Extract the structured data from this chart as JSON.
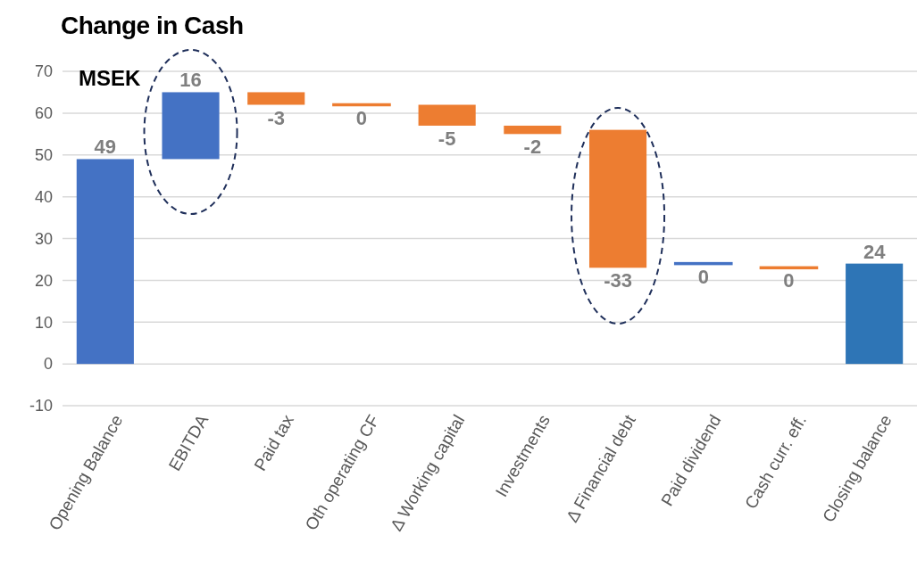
{
  "chart_data": {
    "type": "bar",
    "title": "Change in Cash",
    "subtitle": "MSEK",
    "categories": [
      "Opening Balance",
      "EBITDA",
      "Paid tax",
      "Oth operating CF",
      "Δ Working capital",
      "Investments",
      "Δ Financial debt",
      "Paid dividend",
      "Cash curr. eff.",
      "Closing balance"
    ],
    "values": [
      49,
      16,
      -3,
      0,
      -5,
      -2,
      -33,
      0,
      0,
      24
    ],
    "base": [
      0,
      49,
      65,
      62,
      62,
      57,
      56,
      24,
      23,
      0
    ],
    "colors": [
      "#4472c4",
      "#4472c4",
      "#ed7d31",
      "#ed7d31",
      "#ed7d31",
      "#ed7d31",
      "#ed7d31",
      "#4472c4",
      "#ed7d31",
      "#2e75b6"
    ],
    "ylim": [
      -10,
      70
    ],
    "yticks": [
      -10,
      0,
      10,
      20,
      30,
      40,
      50,
      60,
      70
    ],
    "grid": "y",
    "data_labels": true
  }
}
